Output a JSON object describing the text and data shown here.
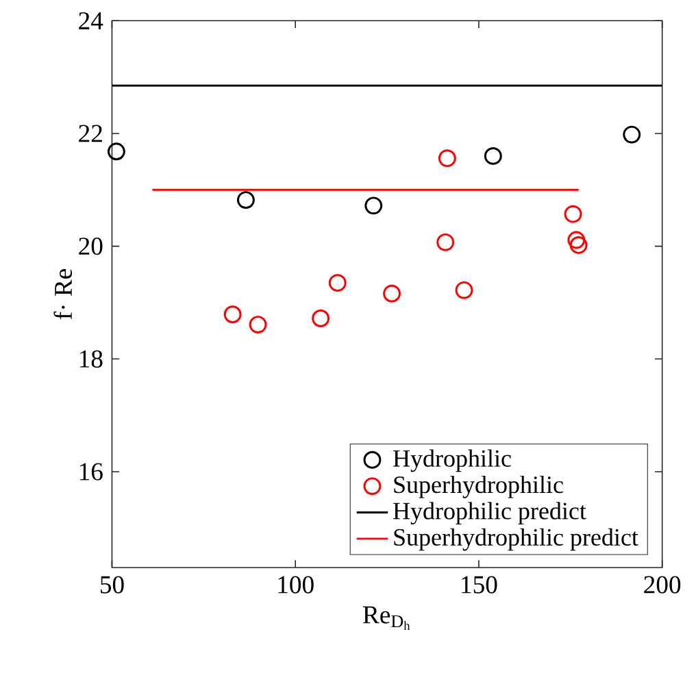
{
  "chart_data": {
    "type": "scatter",
    "xlabel": "\\mathrm{Re}_{\\mathrm{D}_{\\mathrm{h}}}",
    "ylabel": "f· Re",
    "xlim": [
      50,
      200
    ],
    "ylim": [
      14.3,
      24
    ],
    "xticks": [
      50,
      100,
      150,
      200
    ],
    "yticks": [
      16,
      18,
      20,
      22,
      24
    ],
    "grid": false,
    "legend": "bottom right",
    "series": [
      {
        "name": "Hydrophilic",
        "color": "#000000",
        "marker": "circle",
        "x": [
          51.2,
          86.5,
          121.3,
          153.9,
          191.7
        ],
        "values": [
          21.68,
          20.82,
          20.72,
          21.6,
          21.98
        ]
      },
      {
        "name": "Superhydrophilic",
        "color": "#ff0000",
        "marker": "circle",
        "x": [
          82.9,
          89.8,
          106.9,
          111.5,
          126.3,
          140.9,
          141.4,
          146.0,
          175.7,
          176.6,
          177.2
        ],
        "values": [
          18.79,
          18.61,
          18.72,
          19.35,
          19.16,
          20.07,
          21.56,
          19.22,
          20.57,
          20.11,
          20.02
        ]
      },
      {
        "name": "Hydrophilic predict",
        "type": "line",
        "color": "#000000",
        "marker": "none",
        "line_style": "solid",
        "x": [
          50,
          200
        ],
        "values": [
          22.85,
          22.85
        ]
      },
      {
        "name": "Superhydrophilic predict",
        "type": "line",
        "color": "#ff0000",
        "marker": "none",
        "line_style": "solid",
        "x": [
          61,
          177.2
        ],
        "values": [
          21.0,
          21.0
        ]
      }
    ]
  }
}
